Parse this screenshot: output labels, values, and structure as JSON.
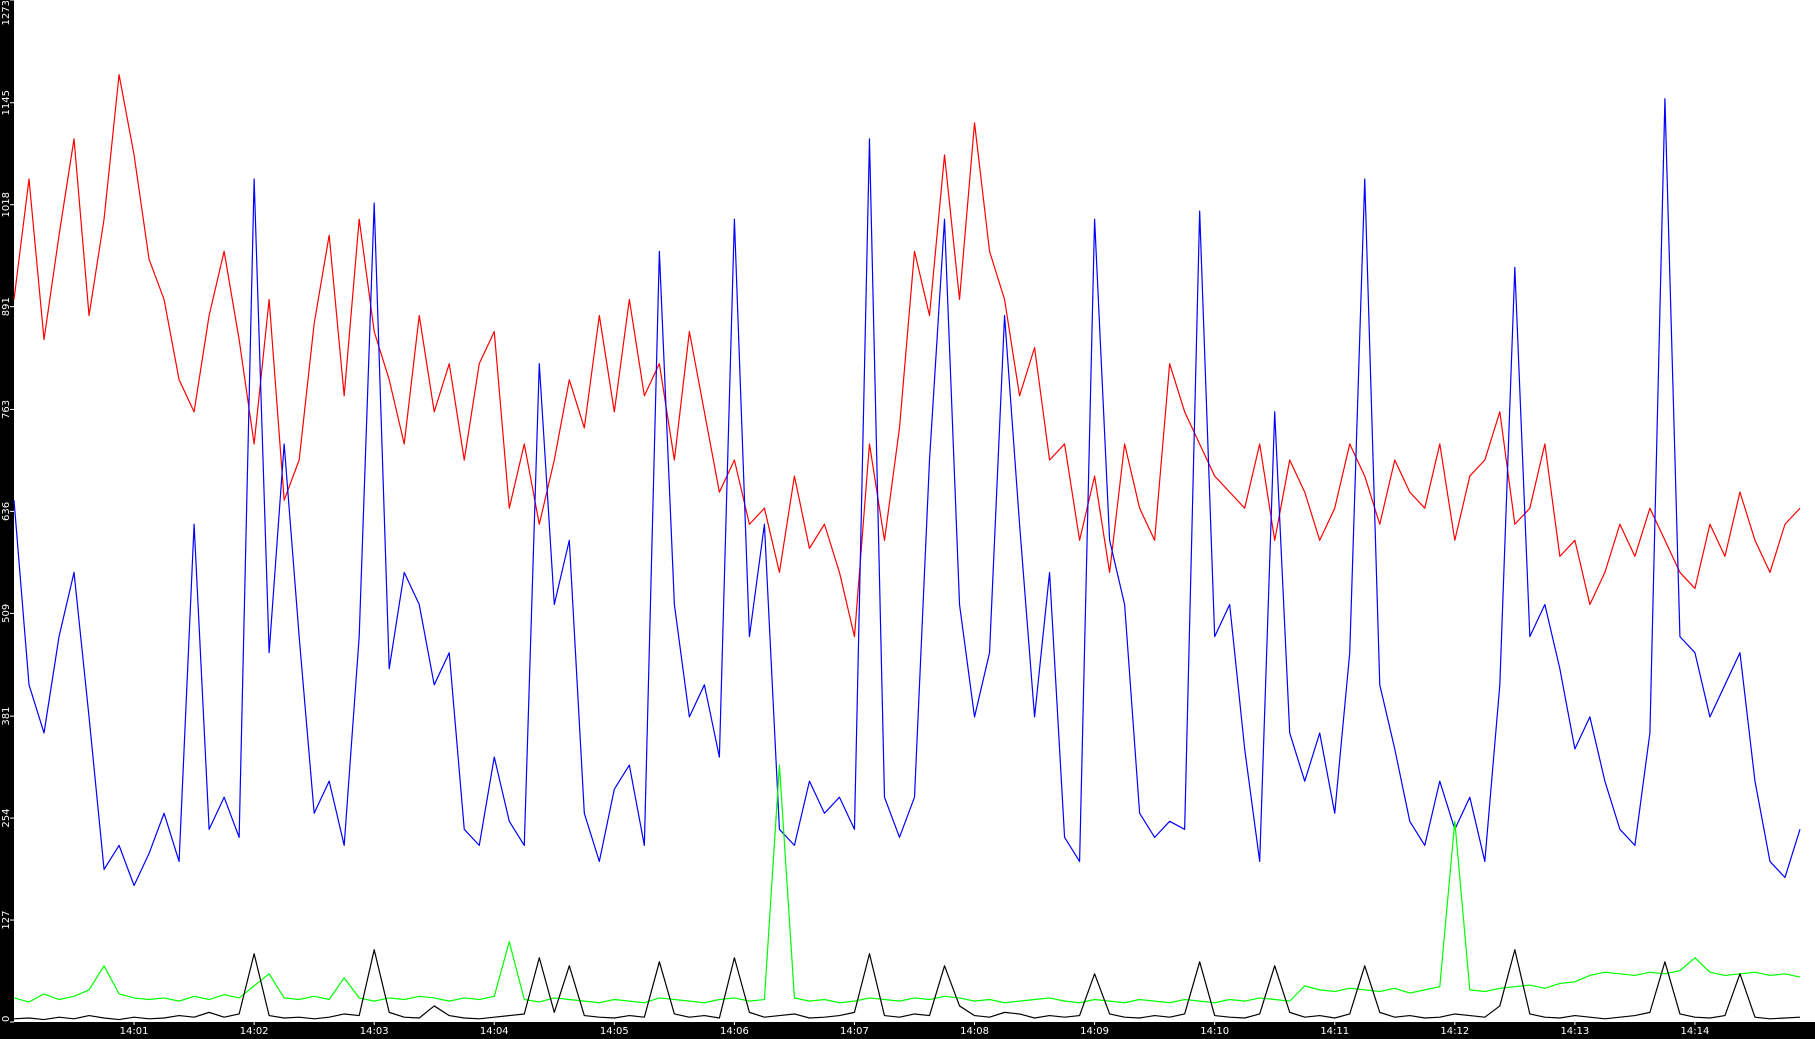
{
  "chart_data": {
    "type": "line",
    "x": [
      840,
      840.125,
      840.25,
      840.375,
      840.5,
      840.625,
      840.75,
      840.875,
      841,
      841.125,
      841.25,
      841.375,
      841.5,
      841.625,
      841.75,
      841.875,
      842,
      842.125,
      842.25,
      842.375,
      842.5,
      842.625,
      842.75,
      842.875,
      843,
      843.125,
      843.25,
      843.375,
      843.5,
      843.625,
      843.75,
      843.875,
      844,
      844.125,
      844.25,
      844.375,
      844.5,
      844.625,
      844.75,
      844.875,
      845,
      845.125,
      845.25,
      845.375,
      845.5,
      845.625,
      845.75,
      845.875,
      846,
      846.125,
      846.25,
      846.375,
      846.5,
      846.625,
      846.75,
      846.875,
      847,
      847.125,
      847.25,
      847.375,
      847.5,
      847.625,
      847.75,
      847.875,
      848,
      848.125,
      848.25,
      848.375,
      848.5,
      848.625,
      848.75,
      848.875,
      849,
      849.125,
      849.25,
      849.375,
      849.5,
      849.625,
      849.75,
      849.875,
      850,
      850.125,
      850.25,
      850.375,
      850.5,
      850.625,
      850.75,
      850.875,
      851,
      851.125,
      851.25,
      851.375,
      851.5,
      851.625,
      851.75,
      851.875,
      852,
      852.125,
      852.25,
      852.375,
      852.5,
      852.625,
      852.75,
      852.875,
      853,
      853.125,
      853.25,
      853.375,
      853.5,
      853.625,
      853.75,
      853.875,
      854,
      854.125,
      854.25,
      854.375,
      854.5,
      854.625,
      854.75,
      854.875
    ],
    "xlim": [
      840,
      855
    ],
    "xticks": [
      {
        "value": 841,
        "label": "14:01"
      },
      {
        "value": 842,
        "label": "14:02"
      },
      {
        "value": 843,
        "label": "14:03"
      },
      {
        "value": 844,
        "label": "14:04"
      },
      {
        "value": 845,
        "label": "14:05"
      },
      {
        "value": 846,
        "label": "14:06"
      },
      {
        "value": 847,
        "label": "14:07"
      },
      {
        "value": 848,
        "label": "14:08"
      },
      {
        "value": 849,
        "label": "14:09"
      },
      {
        "value": 850,
        "label": "14:10"
      },
      {
        "value": 851,
        "label": "14:11"
      },
      {
        "value": 852,
        "label": "14:12"
      },
      {
        "value": 853,
        "label": "14:13"
      },
      {
        "value": 854,
        "label": "14:14"
      }
    ],
    "ylim": [
      0,
      1273
    ],
    "yticks": [
      0,
      127,
      254,
      381,
      509,
      636,
      763,
      891,
      1018,
      1145,
      1273
    ],
    "grid": false,
    "series": [
      {
        "color": "#ff0000",
        "values": [
          900,
          1050,
          850,
          980,
          1100,
          880,
          1000,
          1180,
          1080,
          950,
          900,
          800,
          760,
          880,
          960,
          850,
          720,
          900,
          650,
          700,
          870,
          980,
          780,
          1000,
          860,
          800,
          720,
          880,
          760,
          820,
          700,
          820,
          860,
          640,
          720,
          620,
          700,
          800,
          740,
          880,
          760,
          900,
          780,
          820,
          700,
          860,
          760,
          660,
          700,
          620,
          640,
          560,
          680,
          590,
          620,
          560,
          480,
          720,
          600,
          740,
          960,
          880,
          1080,
          900,
          1120,
          960,
          900,
          780,
          840,
          700,
          720,
          600,
          680,
          560,
          720,
          640,
          600,
          820,
          760,
          720,
          680,
          660,
          640,
          720,
          600,
          700,
          660,
          600,
          640,
          720,
          680,
          620,
          700,
          660,
          640,
          720,
          600,
          680,
          700,
          760,
          620,
          640,
          720,
          580,
          600,
          520,
          560,
          620,
          580,
          640,
          600,
          560,
          540,
          620,
          580,
          660,
          600,
          560,
          620,
          640
        ]
      },
      {
        "color": "#0000ff",
        "values": [
          650,
          420,
          360,
          480,
          560,
          380,
          190,
          220,
          170,
          210,
          260,
          200,
          620,
          240,
          280,
          230,
          1050,
          460,
          720,
          480,
          260,
          300,
          220,
          480,
          1020,
          440,
          560,
          520,
          420,
          460,
          240,
          220,
          330,
          250,
          220,
          820,
          520,
          600,
          260,
          200,
          290,
          320,
          220,
          960,
          520,
          380,
          420,
          330,
          1000,
          480,
          620,
          240,
          220,
          300,
          260,
          280,
          240,
          1100,
          280,
          230,
          280,
          700,
          1000,
          520,
          380,
          460,
          880,
          620,
          380,
          560,
          230,
          200,
          1000,
          600,
          520,
          260,
          230,
          250,
          240,
          1010,
          480,
          520,
          340,
          200,
          760,
          360,
          300,
          360,
          260,
          460,
          1050,
          420,
          340,
          250,
          220,
          300,
          240,
          280,
          200,
          420,
          940,
          480,
          520,
          440,
          340,
          380,
          300,
          240,
          220,
          360,
          1150,
          480,
          460,
          380,
          420,
          460,
          300,
          200,
          180,
          240
        ]
      },
      {
        "color": "#00ff00",
        "values": [
          30,
          25,
          35,
          28,
          32,
          40,
          70,
          35,
          30,
          28,
          30,
          26,
          32,
          28,
          34,
          30,
          45,
          60,
          30,
          28,
          32,
          28,
          55,
          30,
          26,
          30,
          28,
          32,
          30,
          26,
          30,
          28,
          32,
          100,
          28,
          25,
          30,
          28,
          26,
          24,
          28,
          26,
          24,
          30,
          28,
          26,
          24,
          28,
          30,
          26,
          28,
          320,
          30,
          26,
          28,
          24,
          26,
          30,
          28,
          26,
          30,
          28,
          32,
          30,
          26,
          28,
          24,
          26,
          28,
          30,
          26,
          24,
          28,
          26,
          24,
          28,
          26,
          24,
          28,
          26,
          24,
          28,
          26,
          30,
          28,
          26,
          45,
          40,
          38,
          42,
          40,
          38,
          42,
          36,
          40,
          44,
          250,
          40,
          38,
          42,
          44,
          46,
          42,
          48,
          50,
          58,
          62,
          60,
          58,
          62,
          60,
          64,
          80,
          62,
          58,
          60,
          62,
          58,
          60,
          56
        ]
      },
      {
        "color": "#000000",
        "values": [
          4,
          5,
          3,
          6,
          4,
          8,
          5,
          3,
          6,
          4,
          5,
          8,
          6,
          12,
          6,
          10,
          85,
          8,
          5,
          6,
          4,
          6,
          10,
          8,
          90,
          12,
          6,
          5,
          20,
          8,
          5,
          4,
          6,
          8,
          10,
          80,
          12,
          70,
          8,
          6,
          5,
          8,
          6,
          75,
          10,
          6,
          8,
          5,
          80,
          12,
          6,
          8,
          10,
          5,
          6,
          8,
          12,
          85,
          8,
          6,
          10,
          8,
          70,
          20,
          8,
          6,
          12,
          10,
          5,
          8,
          6,
          8,
          60,
          10,
          6,
          5,
          8,
          6,
          10,
          75,
          8,
          6,
          5,
          10,
          70,
          12,
          6,
          8,
          5,
          10,
          70,
          12,
          6,
          8,
          5,
          6,
          10,
          8,
          6,
          20,
          90,
          10,
          6,
          5,
          8,
          6,
          4,
          6,
          8,
          12,
          75,
          10,
          6,
          5,
          8,
          60,
          6,
          4,
          5,
          6
        ]
      }
    ]
  }
}
